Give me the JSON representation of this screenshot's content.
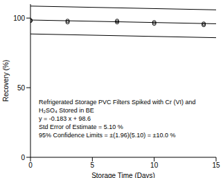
{
  "chart_data": {
    "type": "scatter",
    "x_label": "Storage Time (Days)",
    "y_label": "Recovery (%)",
    "annotations": [
      "Refrigerated Storage PVC Filters Spiked with Cr (VI) and",
      "H₂SO₄ Stored in BE",
      "y = -0.183 x + 98.6",
      "Std Error of Estimate = 5.10 %",
      "95% Confidence Limits = ±(1.96)(5.10) = ±10.0 %"
    ],
    "xlim": [
      0,
      15
    ],
    "xticks": [
      0,
      5,
      10,
      15
    ],
    "ylim": [
      0,
      110
    ],
    "yticks": [
      0,
      50,
      100
    ],
    "grid": false,
    "series": [
      {
        "type": "scatter",
        "marker": "circle",
        "color": "#000000",
        "x": [
          0,
          0,
          3,
          3,
          7,
          7,
          10,
          10,
          14,
          14
        ],
        "values": [
          98,
          98.5,
          97,
          98,
          98,
          97,
          96,
          97,
          95,
          96
        ]
      },
      {
        "type": "line",
        "color": "#000000",
        "x": [
          0,
          15
        ],
        "values": [
          98.6,
          95.9
        ]
      },
      {
        "type": "line",
        "color": "#000000",
        "x": [
          0,
          15
        ],
        "values": [
          108.6,
          105.9
        ]
      },
      {
        "type": "line",
        "color": "#000000",
        "x": [
          0,
          15
        ],
        "values": [
          88.6,
          85.9
        ]
      }
    ]
  }
}
